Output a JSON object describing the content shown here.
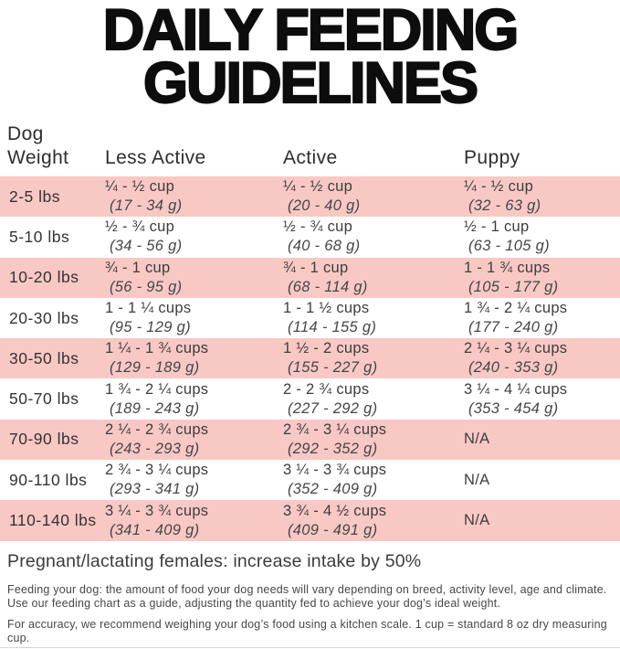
{
  "title": {
    "line1": "DAILY FEEDING",
    "line2": "GUIDELINES"
  },
  "colors": {
    "row_pink": "#f8c8c5",
    "title_black": "#0d0d0d",
    "table_text": "#3d3d3d",
    "bottom_line": "#d6d6d6"
  },
  "table": {
    "headers": {
      "col0_line1": "Dog",
      "col0_line2": "Weight",
      "col1": "Less Active",
      "col2": "Active",
      "col3": "Puppy"
    },
    "rows": [
      {
        "weight": "2-5 lbs",
        "less_active": {
          "cups": "¼ - ½ cup",
          "grams": "(17 - 34 g)"
        },
        "active": {
          "cups": "¼ - ½ cup",
          "grams": "(20 - 40 g)"
        },
        "puppy": {
          "cups": "¼ - ½ cup",
          "grams": "(32 - 63 g)"
        }
      },
      {
        "weight": "5-10 lbs",
        "less_active": {
          "cups": "½ - ¾ cup",
          "grams": "(34 - 56 g)"
        },
        "active": {
          "cups": "½ - ¾ cup",
          "grams": "(40 - 68 g)"
        },
        "puppy": {
          "cups": "½ - 1 cup",
          "grams": "(63 - 105 g)"
        }
      },
      {
        "weight": "10-20 lbs",
        "less_active": {
          "cups": "¾ - 1 cup",
          "grams": "(56 - 95 g)"
        },
        "active": {
          "cups": "¾ - 1 cup",
          "grams": "(68 - 114 g)"
        },
        "puppy": {
          "cups": "1 - 1 ¾ cups",
          "grams": "(105 - 177 g)"
        }
      },
      {
        "weight": "20-30 lbs",
        "less_active": {
          "cups": "1 - 1 ¼ cups",
          "grams": "(95 - 129 g)"
        },
        "active": {
          "cups": "1 - 1 ½ cups",
          "grams": "(114 - 155 g)"
        },
        "puppy": {
          "cups": "1 ¾ - 2 ¼ cups",
          "grams": "(177 - 240 g)"
        }
      },
      {
        "weight": "30-50 lbs",
        "less_active": {
          "cups": "1 ¼ - 1 ¾ cups",
          "grams": "(129 - 189 g)"
        },
        "active": {
          "cups": "1 ½ - 2 cups",
          "grams": "(155 - 227 g)"
        },
        "puppy": {
          "cups": "2 ¼ - 3 ¼ cups",
          "grams": "(240 - 353 g)"
        }
      },
      {
        "weight": "50-70 lbs",
        "less_active": {
          "cups": "1 ¾ - 2 ¼ cups",
          "grams": "(189 - 243 g)"
        },
        "active": {
          "cups": "2 - 2 ¾ cups",
          "grams": "(227 - 292 g)"
        },
        "puppy": {
          "cups": "3 ¼ - 4 ¼ cups",
          "grams": "(353 - 454 g)"
        }
      },
      {
        "weight": "70-90 lbs",
        "less_active": {
          "cups": "2 ¼ - 2 ¾ cups",
          "grams": "(243 - 293 g)"
        },
        "active": {
          "cups": "2 ¾ - 3 ¼ cups",
          "grams": "(292 - 352 g)"
        },
        "puppy": {
          "cups": "N/A",
          "grams": ""
        }
      },
      {
        "weight": "90-110 lbs",
        "less_active": {
          "cups": "2 ¾ - 3 ¼ cups",
          "grams": "(293 - 341 g)"
        },
        "active": {
          "cups": "3 ¼ - 3 ¾ cups",
          "grams": "(352 - 409 g)"
        },
        "puppy": {
          "cups": "N/A",
          "grams": ""
        }
      },
      {
        "weight": "110-140 lbs",
        "less_active": {
          "cups": "3 ¼ - 3 ¾ cups",
          "grams": "(341 - 409 g)"
        },
        "active": {
          "cups": "3 ¾ - 4 ½ cups",
          "grams": "(409 - 491 g)"
        },
        "puppy": {
          "cups": "N/A",
          "grams": ""
        }
      }
    ]
  },
  "notes": {
    "pregnant": "Pregnant/lactating females: increase intake by 50%",
    "feeding": "Feeding your dog: the amount of food your dog needs will vary depending on breed, activity level, age and climate. Use our feeding chart as a guide, adjusting the quantity fed to achieve your dog’s ideal weight.",
    "accuracy": "For accuracy, we recommend weighing your dog’s food using a kitchen scale. 1 cup = standard 8 oz dry measuring cup."
  }
}
